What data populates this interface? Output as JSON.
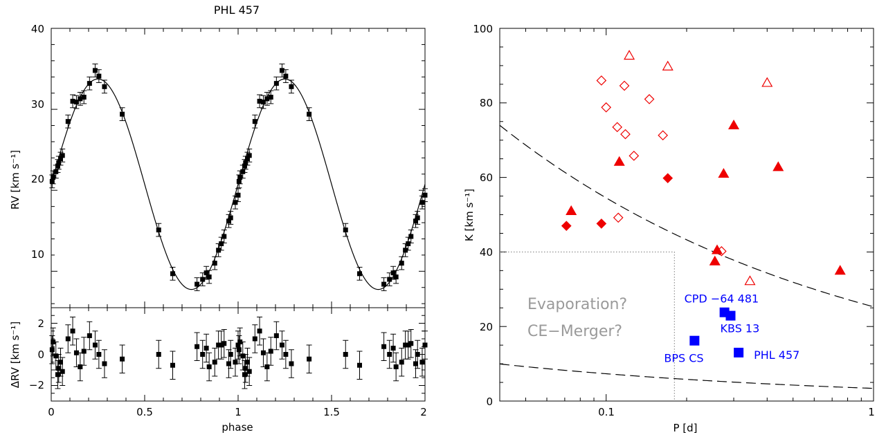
{
  "chart_data": [
    {
      "type": "scatter",
      "title": "PHL 457",
      "xlabel": "phase",
      "ylabel": "RV [km s⁻¹]",
      "ylabel_residual": "ΔRV [km s⁻¹]",
      "xlim": [
        0,
        2
      ],
      "ylim_top": [
        5.5,
        40
      ],
      "ylim_bottom": [
        -3,
        3
      ],
      "xticks": [
        "0",
        "0.5",
        "1",
        "1.5",
        "2"
      ],
      "yticks_top": [
        "10",
        "20",
        "30",
        "40"
      ],
      "yticks_bottom": [
        "−2",
        "0",
        "2"
      ],
      "fit_curve": {
        "gamma": 20.75,
        "K": 13.0,
        "phase_of_max": 0.25
      },
      "rv_points": [
        [
          0.005,
          21.1
        ],
        [
          0.01,
          21.6
        ],
        [
          0.025,
          22.3
        ],
        [
          0.035,
          23.0
        ],
        [
          0.04,
          23.4
        ],
        [
          0.05,
          23.9
        ],
        [
          0.06,
          24.3
        ],
        [
          0.09,
          28.5
        ],
        [
          0.115,
          31.0
        ],
        [
          0.135,
          30.9
        ],
        [
          0.155,
          31.3
        ],
        [
          0.175,
          31.5
        ],
        [
          0.205,
          33.2
        ],
        [
          0.235,
          34.8
        ],
        [
          0.255,
          34.1
        ],
        [
          0.285,
          32.8
        ],
        [
          0.38,
          29.4
        ],
        [
          0.575,
          15.1
        ],
        [
          0.65,
          9.7
        ],
        [
          0.78,
          8.4
        ],
        [
          0.81,
          9.0
        ],
        [
          0.83,
          9.8
        ],
        [
          0.845,
          9.3
        ],
        [
          0.875,
          11.0
        ],
        [
          0.895,
          12.6
        ],
        [
          0.91,
          13.4
        ],
        [
          0.925,
          14.3
        ],
        [
          0.95,
          16.2
        ],
        [
          0.96,
          16.6
        ],
        [
          0.985,
          18.5
        ],
        [
          1.0,
          19.4
        ],
        [
          1.005,
          21.1
        ],
        [
          1.01,
          21.6
        ],
        [
          1.025,
          22.3
        ],
        [
          1.035,
          23.0
        ],
        [
          1.04,
          23.4
        ],
        [
          1.05,
          23.9
        ],
        [
          1.06,
          24.3
        ],
        [
          1.09,
          28.5
        ],
        [
          1.115,
          31.0
        ],
        [
          1.135,
          30.9
        ],
        [
          1.155,
          31.3
        ],
        [
          1.175,
          31.5
        ],
        [
          1.205,
          33.2
        ],
        [
          1.235,
          34.8
        ],
        [
          1.255,
          34.1
        ],
        [
          1.285,
          32.8
        ],
        [
          1.38,
          29.4
        ],
        [
          1.575,
          15.1
        ],
        [
          1.65,
          9.7
        ],
        [
          1.78,
          8.4
        ],
        [
          1.81,
          9.0
        ],
        [
          1.83,
          9.8
        ],
        [
          1.845,
          9.3
        ],
        [
          1.875,
          11.0
        ],
        [
          1.895,
          12.6
        ],
        [
          1.91,
          13.4
        ],
        [
          1.925,
          14.3
        ],
        [
          1.95,
          16.2
        ],
        [
          1.96,
          16.6
        ],
        [
          1.985,
          18.5
        ],
        [
          2.0,
          19.4
        ]
      ],
      "rv_error": 0.8,
      "residual_points": [
        [
          0.005,
          0.3
        ],
        [
          0.01,
          0.8
        ],
        [
          0.025,
          -0.1
        ],
        [
          0.035,
          -1.3
        ],
        [
          0.04,
          -0.9
        ],
        [
          0.05,
          -0.5
        ],
        [
          0.06,
          -1.1
        ],
        [
          0.09,
          1.0
        ],
        [
          0.115,
          1.5
        ],
        [
          0.135,
          0.1
        ],
        [
          0.155,
          -0.8
        ],
        [
          0.175,
          0.2
        ],
        [
          0.205,
          1.2
        ],
        [
          0.235,
          0.6
        ],
        [
          0.255,
          0.0
        ],
        [
          0.285,
          -0.6
        ],
        [
          0.38,
          -0.3
        ],
        [
          0.575,
          0.0
        ],
        [
          0.65,
          -0.7
        ],
        [
          0.78,
          0.5
        ],
        [
          0.81,
          0.0
        ],
        [
          0.83,
          0.4
        ],
        [
          0.845,
          -0.8
        ],
        [
          0.875,
          -0.5
        ],
        [
          0.895,
          0.6
        ],
        [
          0.91,
          0.6
        ],
        [
          0.925,
          0.7
        ],
        [
          0.95,
          -0.6
        ],
        [
          0.96,
          0.0
        ],
        [
          0.985,
          -0.5
        ],
        [
          1.0,
          0.6
        ],
        [
          1.005,
          0.3
        ],
        [
          1.01,
          0.8
        ],
        [
          1.025,
          -0.1
        ],
        [
          1.035,
          -1.3
        ],
        [
          1.04,
          -0.9
        ],
        [
          1.05,
          -0.5
        ],
        [
          1.06,
          -1.1
        ],
        [
          1.09,
          1.0
        ],
        [
          1.115,
          1.5
        ],
        [
          1.135,
          0.1
        ],
        [
          1.155,
          -0.8
        ],
        [
          1.175,
          0.2
        ],
        [
          1.205,
          1.2
        ],
        [
          1.235,
          0.6
        ],
        [
          1.255,
          0.0
        ],
        [
          1.285,
          -0.6
        ],
        [
          1.38,
          -0.3
        ],
        [
          1.575,
          0.0
        ],
        [
          1.65,
          -0.7
        ],
        [
          1.78,
          0.5
        ],
        [
          1.81,
          0.0
        ],
        [
          1.83,
          0.4
        ],
        [
          1.845,
          -0.8
        ],
        [
          1.875,
          -0.5
        ],
        [
          1.895,
          0.6
        ],
        [
          1.91,
          0.6
        ],
        [
          1.925,
          0.7
        ],
        [
          1.95,
          -0.6
        ],
        [
          1.96,
          0.0
        ],
        [
          1.985,
          -0.5
        ],
        [
          2.0,
          0.6
        ]
      ],
      "residual_error": 0.9
    },
    {
      "type": "scatter",
      "xlabel": "P [d]",
      "ylabel": "K [km s⁻¹]",
      "xscale": "log",
      "xlim": [
        0.04,
        1
      ],
      "ylim": [
        0,
        100
      ],
      "xticks": [
        "0.1",
        "1"
      ],
      "yticks": [
        "0",
        "20",
        "40",
        "60",
        "80",
        "100"
      ],
      "boundary_curves": [
        {
          "K_at_1d": 25.3
        },
        {
          "K_at_1d": 3.4
        }
      ],
      "region_box": {
        "p_max": 0.18,
        "k_max": 40
      },
      "annotations": [
        "Evaporation?",
        "CE−Merger?"
      ],
      "color_red": "#ee0000",
      "color_blue": "#0000ff",
      "points_filled_triangle": [
        [
          0.074,
          51
        ],
        [
          0.112,
          64.2
        ],
        [
          0.26,
          40.5
        ],
        [
          0.255,
          37.5
        ],
        [
          0.275,
          61
        ],
        [
          0.3,
          74
        ],
        [
          0.44,
          62.8
        ],
        [
          0.75,
          35
        ]
      ],
      "points_open_triangle": [
        [
          0.122,
          92.7
        ],
        [
          0.17,
          89.8
        ],
        [
          0.4,
          85.4
        ],
        [
          0.345,
          32.2
        ]
      ],
      "points_filled_diamond": [
        [
          0.071,
          47
        ],
        [
          0.096,
          47.6
        ],
        [
          0.17,
          59.8
        ]
      ],
      "points_open_diamond": [
        [
          0.096,
          86
        ],
        [
          0.1,
          78.8
        ],
        [
          0.11,
          73.5
        ],
        [
          0.118,
          71.6
        ],
        [
          0.117,
          84.6
        ],
        [
          0.127,
          65.8
        ],
        [
          0.145,
          81
        ],
        [
          0.163,
          71.3
        ],
        [
          0.111,
          49.2
        ],
        [
          0.27,
          40.2
        ]
      ],
      "points_labeled": [
        {
          "label": "CPD −64 481",
          "P": 0.277,
          "K": 23.8
        },
        {
          "label": "KBS 13",
          "P": 0.292,
          "K": 22.9
        },
        {
          "label": "BPS CS",
          "P": 0.214,
          "K": 16.2
        },
        {
          "label": "PHL 457",
          "P": 0.313,
          "K": 13.0
        }
      ]
    }
  ]
}
